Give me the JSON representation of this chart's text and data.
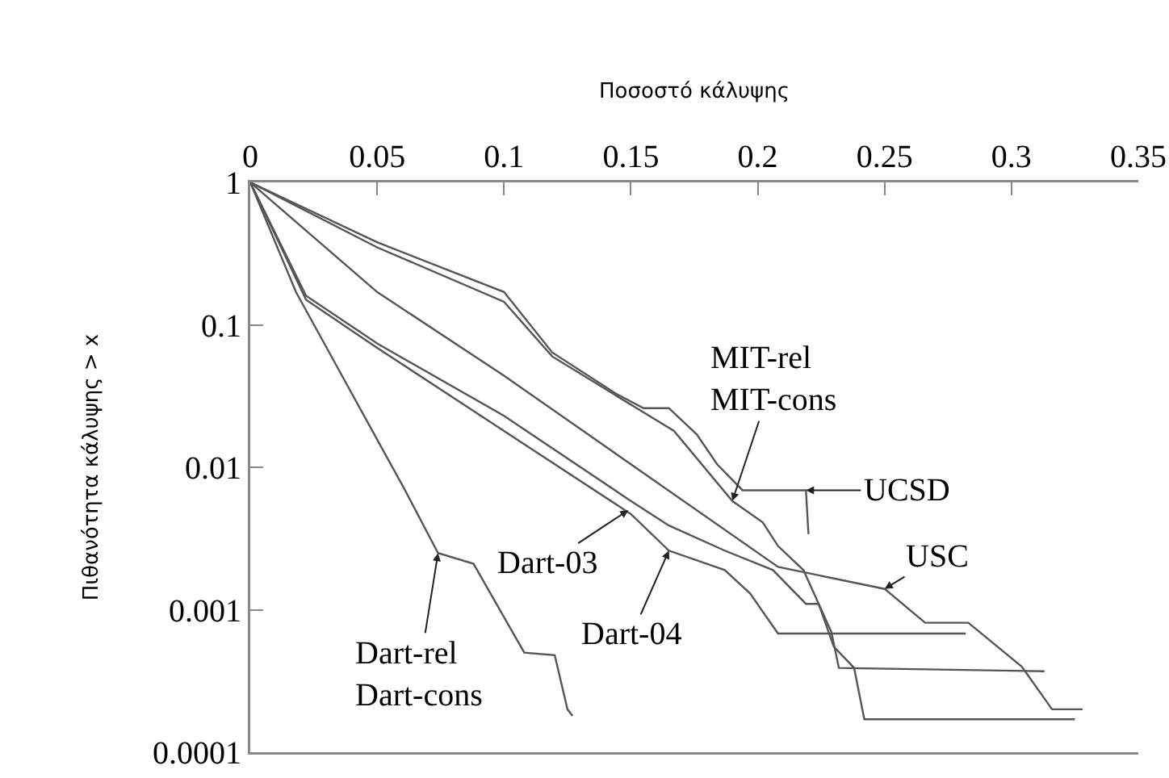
{
  "chart_data": {
    "type": "line",
    "xlabel": "Ποσοστό κάλυψης",
    "ylabel": "Πιθανότητα κάλυψης > x",
    "log": "y",
    "grid": false,
    "marker": "none",
    "line_style": "solid",
    "xlim": [
      0,
      0.35
    ],
    "xticks": [
      0,
      0.05,
      0.1,
      0.15,
      0.2,
      0.25,
      0.3,
      0.35
    ],
    "ylim": [
      0.0001,
      1
    ],
    "yticks": [
      0.0001,
      0.001,
      0.01,
      0.1,
      1
    ],
    "series": [
      {
        "color": "#555555",
        "x": [
          0,
          0.05,
          0.1,
          0.119,
          0.144,
          0.155,
          0.165,
          0.176,
          0.184,
          0.194,
          0.219,
          0.22
        ],
        "values": [
          1,
          0.38,
          0.17,
          0.064,
          0.033,
          0.026,
          0.026,
          0.017,
          0.0105,
          0.0069,
          0.0069,
          0.0034
        ]
      },
      {
        "color": "#555555",
        "x": [
          0,
          0.05,
          0.1,
          0.119,
          0.144,
          0.167,
          0.19,
          0.202,
          0.208,
          0.218,
          0.229,
          0.232,
          0.313
        ],
        "values": [
          1,
          0.35,
          0.145,
          0.06,
          0.032,
          0.018,
          0.0058,
          0.0041,
          0.0028,
          0.0019,
          0.0007,
          0.00039,
          0.00037
        ]
      },
      {
        "color": "#555555",
        "x": [
          0,
          0.05,
          0.1,
          0.15,
          0.208,
          0.25,
          0.266,
          0.283,
          0.304,
          0.316,
          0.328
        ],
        "values": [
          1,
          0.17,
          0.044,
          0.0105,
          0.002,
          0.0014,
          0.00081,
          0.00081,
          0.0004,
          0.0002,
          0.0002
        ]
      },
      {
        "color": "#555555",
        "x": [
          0,
          0.022,
          0.05,
          0.1,
          0.15,
          0.165,
          0.187,
          0.206,
          0.219,
          0.224,
          0.23,
          0.238,
          0.242,
          0.325
        ],
        "values": [
          1,
          0.16,
          0.074,
          0.023,
          0.0058,
          0.0039,
          0.0026,
          0.0019,
          0.0011,
          0.0011,
          0.00055,
          0.00039,
          0.00017,
          0.00017
        ]
      },
      {
        "color": "#555555",
        "x": [
          0,
          0.022,
          0.05,
          0.1,
          0.15,
          0.165,
          0.187,
          0.197,
          0.208,
          0.282
        ],
        "values": [
          1,
          0.15,
          0.069,
          0.018,
          0.0047,
          0.0026,
          0.0019,
          0.0013,
          0.00068,
          0.00068
        ]
      },
      {
        "color": "#555555",
        "x": [
          0,
          0.018,
          0.04,
          0.061,
          0.074,
          0.088,
          0.097,
          0.108,
          0.12,
          0.125,
          0.127
        ],
        "values": [
          1,
          0.17,
          0.033,
          0.0069,
          0.0025,
          0.0021,
          0.0011,
          0.0005,
          0.00048,
          0.0002,
          0.00018
        ]
      }
    ],
    "annotations": [
      {
        "text": "MIT-rel\nMIT-cons",
        "x": 0.19,
        "y": 0.0058
      },
      {
        "text": "UCSD",
        "x": 0.219,
        "y": 0.0069
      },
      {
        "text": "USC",
        "x": 0.25,
        "y": 0.0014
      },
      {
        "text": "Dart-03",
        "x": 0.149,
        "y": 0.005
      },
      {
        "text": "Dart-04",
        "x": 0.165,
        "y": 0.0026
      },
      {
        "text": "Dart-rel\nDart-cons",
        "x": 0.074,
        "y": 0.0025
      }
    ]
  }
}
